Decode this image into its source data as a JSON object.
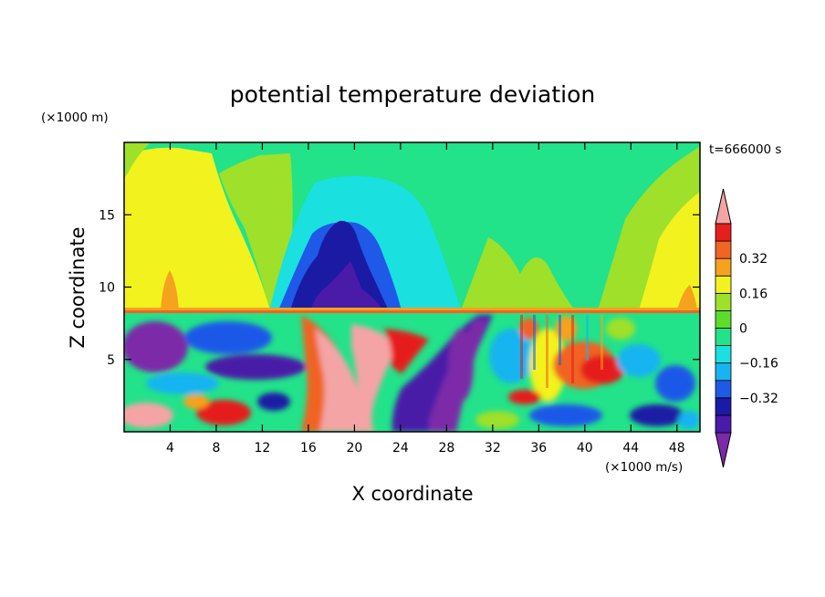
{
  "chart_data": {
    "type": "heatmap",
    "title": "potential temperature deviation",
    "time_label": "t=666000 s",
    "xlabel": "X coordinate",
    "ylabel": "Z coordinate",
    "x_unit": "(×1000 m/s)",
    "y_unit": "(×1000 m)",
    "xlim": [
      0,
      50
    ],
    "ylim": [
      0,
      20
    ],
    "x_ticks": [
      4,
      8,
      12,
      16,
      20,
      24,
      28,
      32,
      36,
      40,
      44,
      48
    ],
    "y_ticks": [
      5,
      10,
      15
    ],
    "colorbar": {
      "levels": [
        -0.48,
        -0.4,
        -0.32,
        -0.24,
        -0.16,
        -0.08,
        0,
        0.08,
        0.16,
        0.24,
        0.32,
        0.4,
        0.48
      ],
      "colors": [
        "#7b2aa8",
        "#4a1aa8",
        "#1a1aa5",
        "#1f59e8",
        "#18b4f0",
        "#1ae0e0",
        "#22e28a",
        "#5ddc2c",
        "#9ee02a",
        "#f2f21e",
        "#f5a21e",
        "#f06424",
        "#e61e1e",
        "#f4a4a4"
      ],
      "tick_labels": [
        "0.32",
        "0.16",
        "0",
        "−0.16",
        "−0.32"
      ],
      "tick_values": [
        0.32,
        0.16,
        0,
        -0.16,
        -0.32
      ]
    },
    "grid": false
  }
}
